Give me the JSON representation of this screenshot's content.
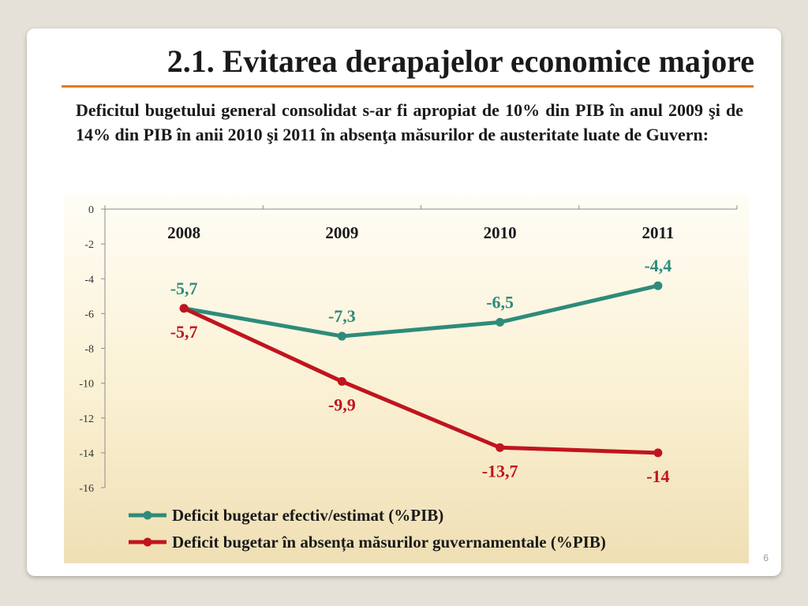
{
  "slide": {
    "title": "2.1. Evitarea derapajelor economice majore",
    "paragraph": "Deficitul bugetului general consolidat s-ar fi apropiat de 10% din PIB în anul 2009 şi de 14% din PIB în anii 2010 şi 2011 în absenţa măsurilor de austeritate luate de Guvern:",
    "page_number": "6"
  },
  "chart_data": {
    "type": "line",
    "categories": [
      "2008",
      "2009",
      "2010",
      "2011"
    ],
    "ylim": [
      -16,
      0
    ],
    "yticks": [
      0,
      -2,
      -4,
      -6,
      -8,
      -10,
      -12,
      -14,
      -16
    ],
    "grid": false,
    "legend_position": "bottom",
    "series": [
      {
        "name": "Deficit bugetar efectiv/estimat (%PIB)",
        "values": [
          -5.7,
          -7.3,
          -6.5,
          -4.4
        ],
        "labels": [
          "-5,7",
          "-7,3",
          "-6,5",
          "-4,4"
        ],
        "color": "#2e8b7a"
      },
      {
        "name": "Deficit bugetar în absența măsurilor guvernamentale (%PIB)",
        "values": [
          -5.7,
          -9.9,
          -13.7,
          -14
        ],
        "labels": [
          "-5,7",
          "-9,9",
          "-13,7",
          "-14"
        ],
        "color": "#c0141f"
      }
    ]
  }
}
